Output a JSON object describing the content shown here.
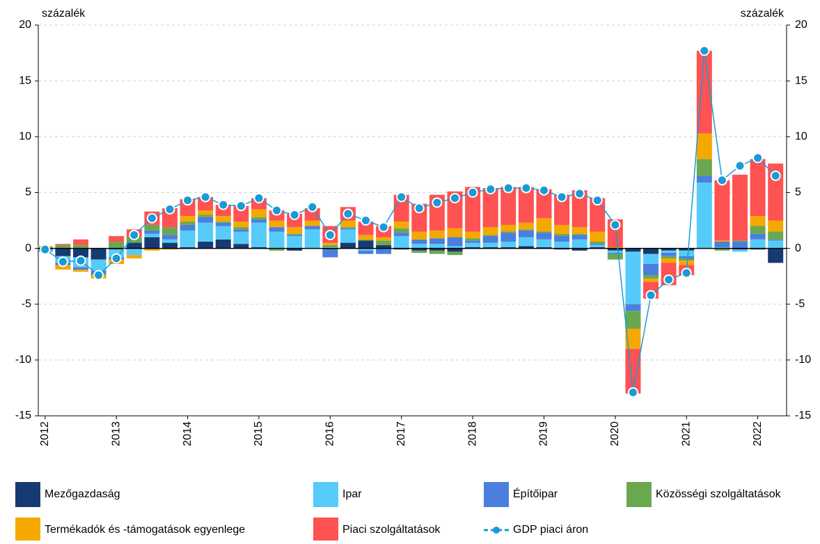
{
  "chart_data": {
    "type": "bar",
    "stacked": true,
    "y_label": "százalék",
    "y2_label": "százalék",
    "categories": [
      "2012",
      null,
      null,
      null,
      "2013",
      null,
      null,
      null,
      "2014",
      null,
      null,
      null,
      "2015",
      null,
      null,
      null,
      "2016",
      null,
      null,
      null,
      "2017",
      null,
      null,
      null,
      "2018",
      null,
      null,
      null,
      "2019",
      null,
      null,
      null,
      "2020",
      null,
      null,
      null,
      "2021",
      null,
      null,
      null,
      "2022",
      null
    ],
    "ylim": [
      -15,
      20
    ],
    "yticks": [
      -15,
      -10,
      -5,
      0,
      5,
      10,
      15,
      20
    ],
    "y2lim": [
      -15,
      20
    ],
    "y2ticks": [
      -15,
      -10,
      -5,
      0,
      5,
      10,
      15,
      20
    ],
    "grid": true,
    "legend": "bottom",
    "series": [
      {
        "name": "Mezőgazdaság",
        "color": "#173a72",
        "values": [
          -0.1,
          -0.7,
          -0.8,
          -1.0,
          -0.1,
          0.5,
          1.0,
          0.5,
          0.1,
          0.6,
          0.8,
          0.4,
          0.1,
          0.0,
          -0.2,
          0.0,
          -0.1,
          0.5,
          0.7,
          0.3,
          -0.1,
          -0.2,
          -0.2,
          -0.3,
          0.1,
          0.1,
          0.1,
          0.2,
          0.1,
          -0.1,
          -0.2,
          0.1,
          -0.2,
          -0.3,
          -0.5,
          -0.2,
          -0.2,
          0.0,
          0.0,
          -0.1,
          -0.1,
          -1.3
        ]
      },
      {
        "name": "Ipar",
        "color": "#56cbf9",
        "values": [
          -0.1,
          -0.6,
          -0.9,
          -1.0,
          -0.7,
          -0.6,
          0.3,
          0.3,
          1.5,
          1.7,
          1.2,
          1.1,
          2.2,
          1.5,
          1.1,
          1.7,
          0.1,
          1.2,
          -0.2,
          0.0,
          1.1,
          0.4,
          0.4,
          0.2,
          0.4,
          0.4,
          0.5,
          0.8,
          0.7,
          0.6,
          0.8,
          0.2,
          -0.2,
          -4.7,
          -0.9,
          -0.2,
          -0.5,
          5.9,
          0.1,
          -0.2,
          0.8,
          0.7
        ]
      },
      {
        "name": "Építőipar",
        "color": "#4a7fde",
        "values": [
          -0.1,
          -0.2,
          -0.2,
          -0.3,
          -0.2,
          0.0,
          0.3,
          0.4,
          0.5,
          0.5,
          0.3,
          0.2,
          0.3,
          0.4,
          0.1,
          0.3,
          -0.7,
          0.1,
          -0.3,
          -0.5,
          0.3,
          0.4,
          0.5,
          0.8,
          0.2,
          0.6,
          0.8,
          0.6,
          0.6,
          0.5,
          0.4,
          0.1,
          -0.1,
          -0.6,
          -1.0,
          -0.3,
          -0.2,
          0.6,
          0.5,
          0.6,
          0.5,
          0.1
        ]
      },
      {
        "name": "Közösségi szolgáltatások",
        "color": "#6aa84f",
        "values": [
          0.1,
          0.3,
          0.3,
          -0.1,
          0.6,
          0.5,
          0.5,
          0.7,
          0.3,
          0.2,
          0.1,
          0.2,
          0.2,
          -0.2,
          0.1,
          0.0,
          0.2,
          0.1,
          0.1,
          0.4,
          0.4,
          -0.2,
          -0.3,
          -0.3,
          0.2,
          0.1,
          0.1,
          0.1,
          0.1,
          0.2,
          0.1,
          0.2,
          -0.5,
          -1.6,
          -0.3,
          -0.2,
          -0.2,
          1.5,
          -0.2,
          0.1,
          0.7,
          0.7
        ]
      },
      {
        "name": "Termékadók és -támogatások egyenlege",
        "color": "#f5a800",
        "values": [
          0.1,
          -0.4,
          -0.2,
          -0.3,
          -0.4,
          -0.3,
          -0.2,
          -0.1,
          0.5,
          0.4,
          0.5,
          0.5,
          0.7,
          0.6,
          0.6,
          0.5,
          0.2,
          0.6,
          0.4,
          0.3,
          0.6,
          0.7,
          0.7,
          0.8,
          0.6,
          0.7,
          0.6,
          0.6,
          1.2,
          0.8,
          0.6,
          0.9,
          0.1,
          -1.8,
          -0.3,
          -0.4,
          -0.4,
          2.3,
          0.1,
          0.0,
          0.9,
          1.0
        ]
      },
      {
        "name": "Piaci szolgáltatások",
        "color": "#ff5252",
        "values": [
          0.0,
          0.1,
          0.5,
          0.0,
          0.5,
          0.7,
          1.2,
          1.7,
          1.5,
          1.2,
          1.0,
          1.4,
          1.0,
          0.9,
          1.2,
          1.1,
          1.5,
          1.2,
          1.2,
          1.0,
          2.4,
          2.5,
          3.2,
          3.3,
          4.0,
          3.5,
          3.4,
          3.2,
          2.6,
          2.7,
          3.3,
          3.0,
          2.5,
          -4.0,
          -1.5,
          -2.0,
          -0.9,
          7.4,
          5.4,
          5.9,
          5.1,
          5.1
        ]
      },
      {
        "name": "GDP piaci áron",
        "color": "#1a9ad6",
        "type": "line",
        "values": [
          -0.1,
          -1.2,
          -1.1,
          -2.4,
          -0.9,
          1.2,
          2.7,
          3.5,
          4.3,
          4.6,
          3.9,
          3.8,
          4.5,
          3.4,
          3.0,
          3.7,
          1.2,
          3.1,
          2.5,
          1.9,
          4.6,
          3.6,
          4.1,
          4.5,
          5.0,
          5.3,
          5.4,
          5.4,
          5.2,
          4.6,
          4.9,
          4.3,
          2.1,
          -12.9,
          -4.2,
          -2.8,
          -2.2,
          17.7,
          6.1,
          7.4,
          8.1,
          6.5
        ]
      }
    ]
  }
}
